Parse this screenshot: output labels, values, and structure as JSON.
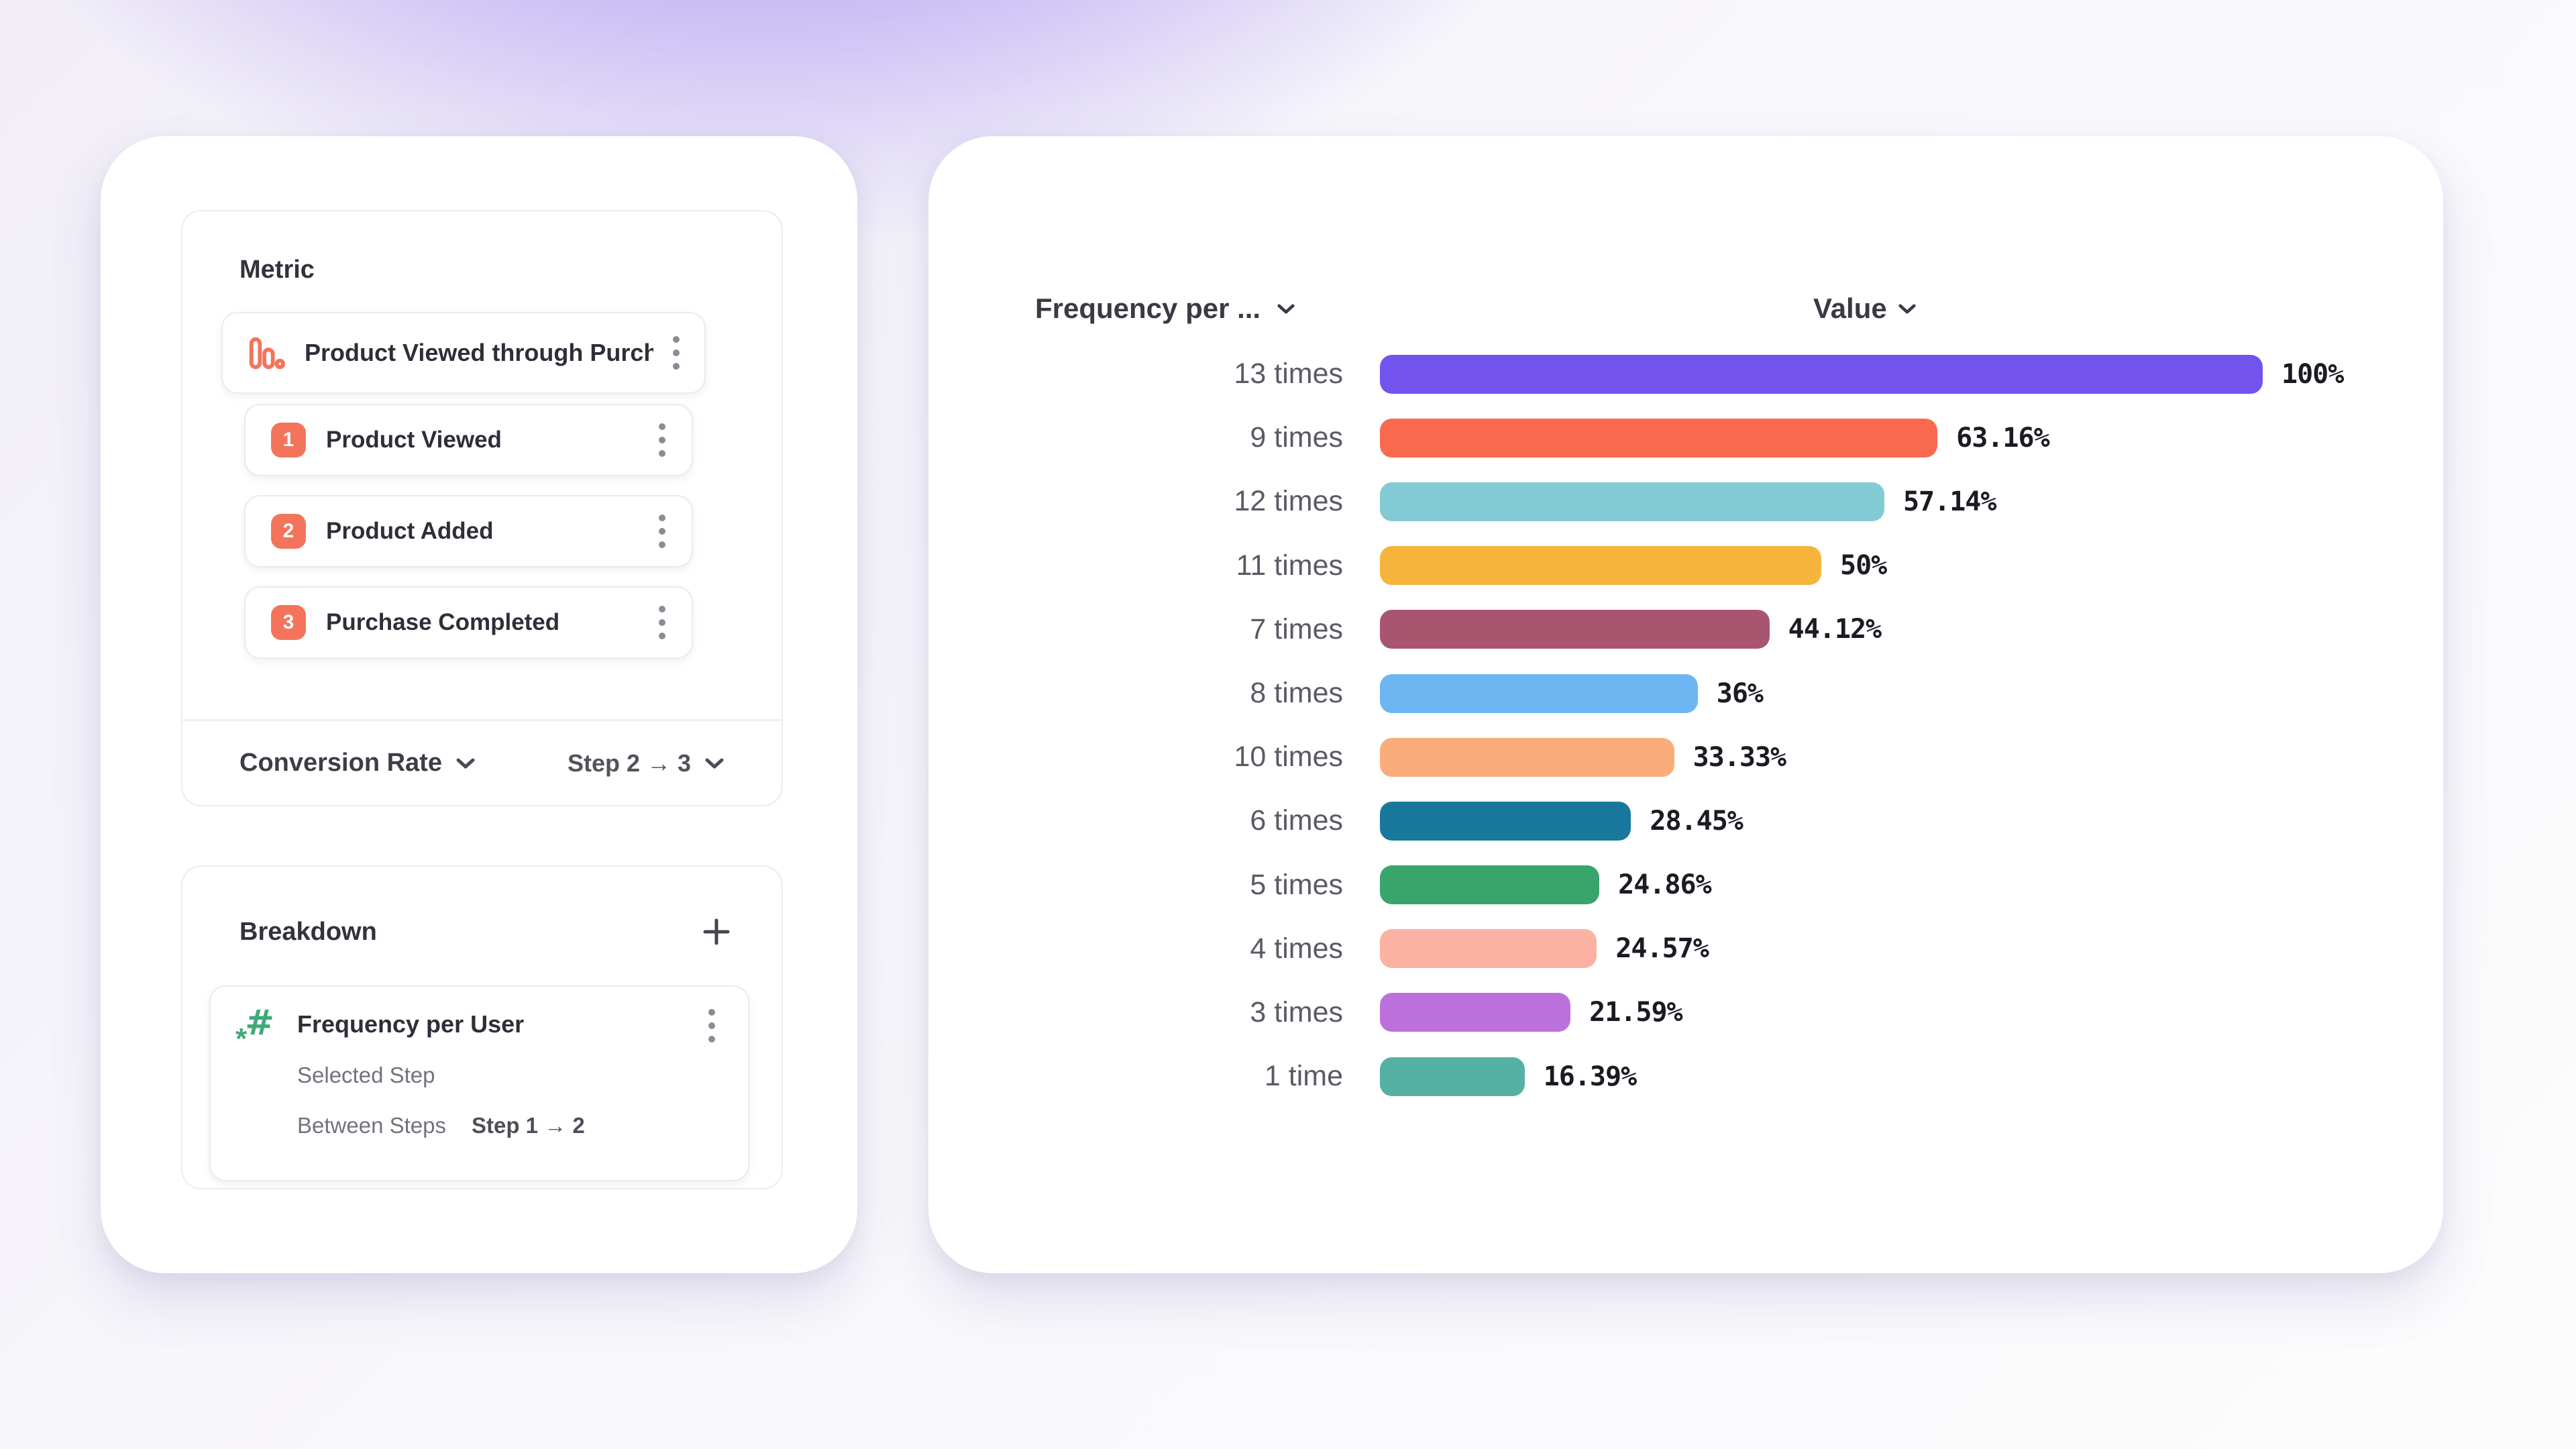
{
  "colors": {
    "accent_orange": "#F3745B",
    "accent_green": "#3FAA78",
    "card_background": "#FFFFFF",
    "page_gradient_purple": "#8568EC"
  },
  "left_panel": {
    "metric": {
      "title": "Metric",
      "funnel_name": "Product Viewed through Purch...",
      "steps": [
        {
          "number": "1",
          "label": "Product Viewed"
        },
        {
          "number": "2",
          "label": "Product Added"
        },
        {
          "number": "3",
          "label": "Purchase Completed"
        }
      ],
      "measure": "Conversion Rate",
      "step_range": "Step 2 → 3"
    },
    "breakdown": {
      "title": "Breakdown",
      "add_icon": "plus",
      "property_icon": "hash-number",
      "property_name": "Frequency per User",
      "row1_label": "Selected Step",
      "row2_label": "Between Steps",
      "row2_value": "Step 1 → 2"
    }
  },
  "chart_data": {
    "type": "bar",
    "orientation": "horizontal",
    "title": "",
    "column_headers": {
      "category": "Frequency per ...",
      "value": "Value"
    },
    "categories": [
      "13 times",
      "9 times",
      "12 times",
      "11 times",
      "7 times",
      "8 times",
      "10 times",
      "6 times",
      "5 times",
      "4 times",
      "3 times",
      "1 time"
    ],
    "values": [
      100,
      63.16,
      57.14,
      50,
      44.12,
      36,
      33.33,
      28.45,
      24.86,
      24.57,
      21.59,
      16.39
    ],
    "value_labels": [
      "100%",
      "63.16%",
      "57.14%",
      "50%",
      "44.12%",
      "36%",
      "33.33%",
      "28.45%",
      "24.86%",
      "24.57%",
      "21.59%",
      "16.39%"
    ],
    "colors": [
      "#7253EE",
      "#F9694D",
      "#82CBD4",
      "#F6B43C",
      "#AA5570",
      "#6DB6F2",
      "#FAAD7B",
      "#17789B",
      "#3AA56B",
      "#FCB2A3",
      "#BC70DC",
      "#54B1A3"
    ],
    "xlim": [
      0,
      100
    ],
    "grid": false,
    "legend": "none",
    "xlabel": "",
    "ylabel": ""
  }
}
